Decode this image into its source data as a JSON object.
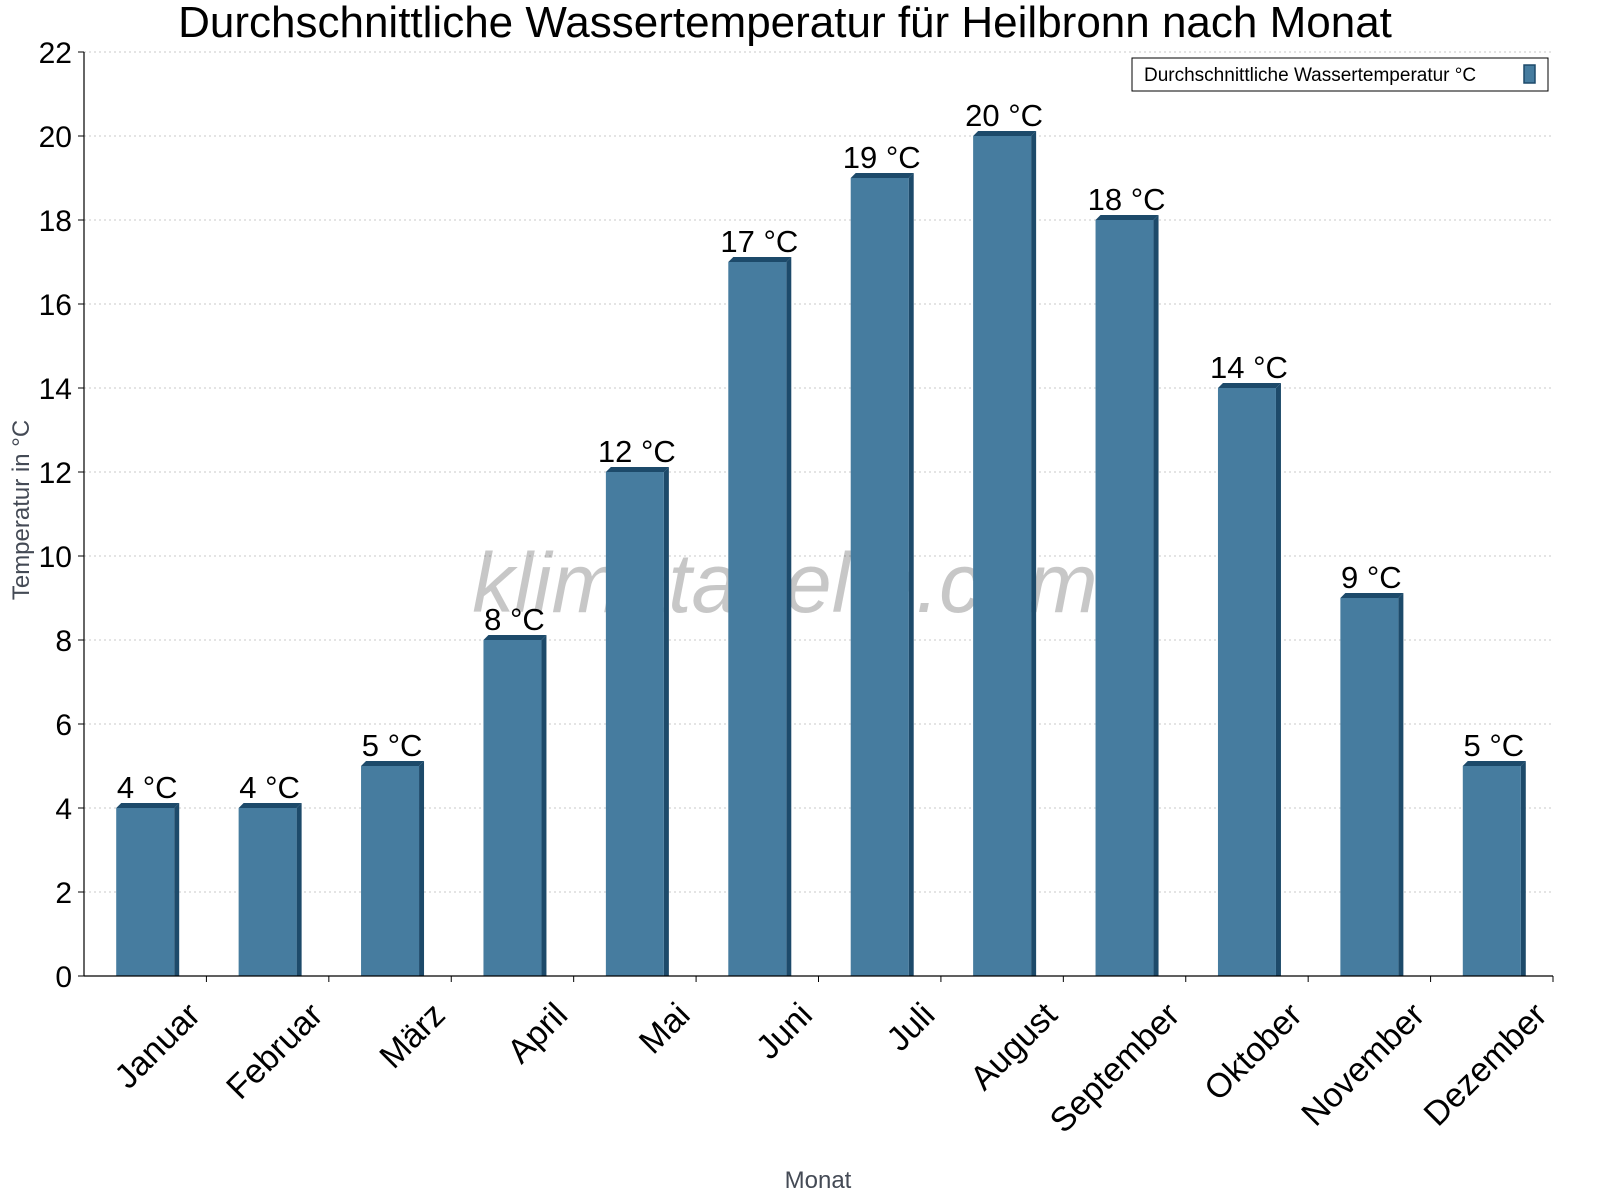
{
  "chart_data": {
    "type": "bar",
    "title": "Durchschnittliche Wassertemperatur für Heilbronn nach Monat",
    "xlabel": "Monat",
    "ylabel": "Temperatur in °C",
    "categories": [
      "Januar",
      "Februar",
      "März",
      "April",
      "Mai",
      "Juni",
      "Juli",
      "August",
      "September",
      "Oktober",
      "November",
      "Dezember"
    ],
    "series": [
      {
        "name": "Durchschnittliche Wassertemperatur °C",
        "values": [
          4,
          4,
          5,
          8,
          12,
          17,
          19,
          20,
          18,
          14,
          9,
          5
        ],
        "value_labels": [
          "4 °C",
          "4 °C",
          "5 °C",
          "8 °C",
          "12 °C",
          "17 °C",
          "19 °C",
          "20 °C",
          "18 °C",
          "14 °C",
          "9 °C",
          "5 °C"
        ]
      }
    ],
    "ylim": [
      0,
      22
    ],
    "yticks": [
      0,
      2,
      4,
      6,
      8,
      10,
      12,
      14,
      16,
      18,
      20,
      22
    ],
    "grid": true,
    "legend_position": "top-right",
    "watermark": "klimatabelle.com",
    "colors": {
      "bar_fill": "#467c9f",
      "bar_side": "#1d4a6a",
      "bar_top": "#1d4a6a",
      "grid": "#c8c8c8",
      "axis": "#000000"
    }
  }
}
